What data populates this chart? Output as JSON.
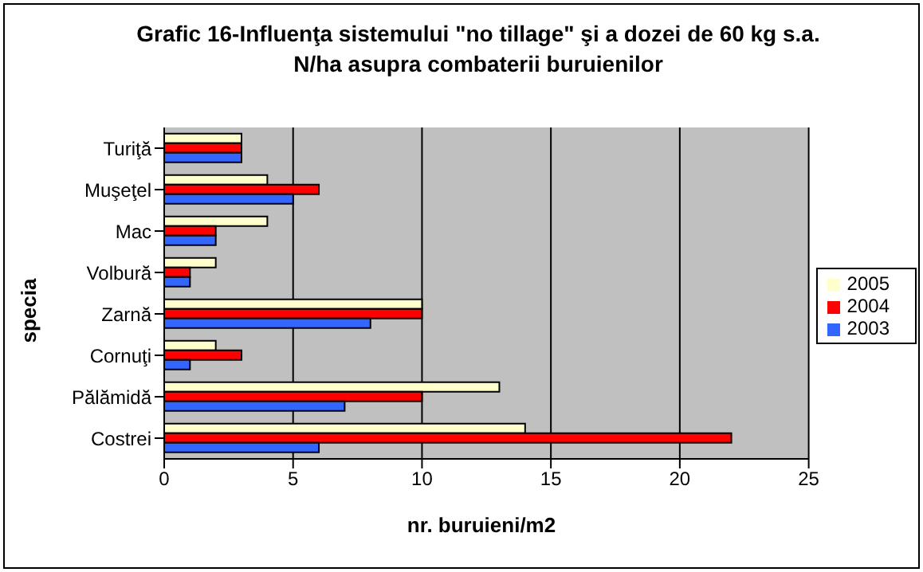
{
  "chart_data": {
    "type": "bar",
    "orientation": "horizontal",
    "title": "Grafic 16-Influenţa sistemului \"no tillage\" şi a dozei de 60 kg s.a. N/ha asupra combaterii buruienilor",
    "xlabel": "nr. buruieni/m2",
    "ylabel": "specia",
    "categories": [
      "Turiţă",
      "Muşeţel",
      "Mac",
      "Volbură",
      "Zarnă",
      "Cornuţi",
      "Pălămidă",
      "Costrei"
    ],
    "series": [
      {
        "name": "2005",
        "color": "#ffffcc",
        "values": [
          3,
          4,
          4,
          2,
          10,
          2,
          13,
          14
        ]
      },
      {
        "name": "2004",
        "color": "#ff0000",
        "values": [
          3,
          6,
          2,
          1,
          10,
          3,
          10,
          22
        ]
      },
      {
        "name": "2003",
        "color": "#3366ff",
        "values": [
          3,
          5,
          2,
          1,
          8,
          1,
          7,
          6
        ]
      }
    ],
    "xlim": [
      0,
      25
    ],
    "xticks": [
      0,
      5,
      10,
      15,
      20,
      25
    ],
    "grid": "x",
    "legend": "right"
  }
}
